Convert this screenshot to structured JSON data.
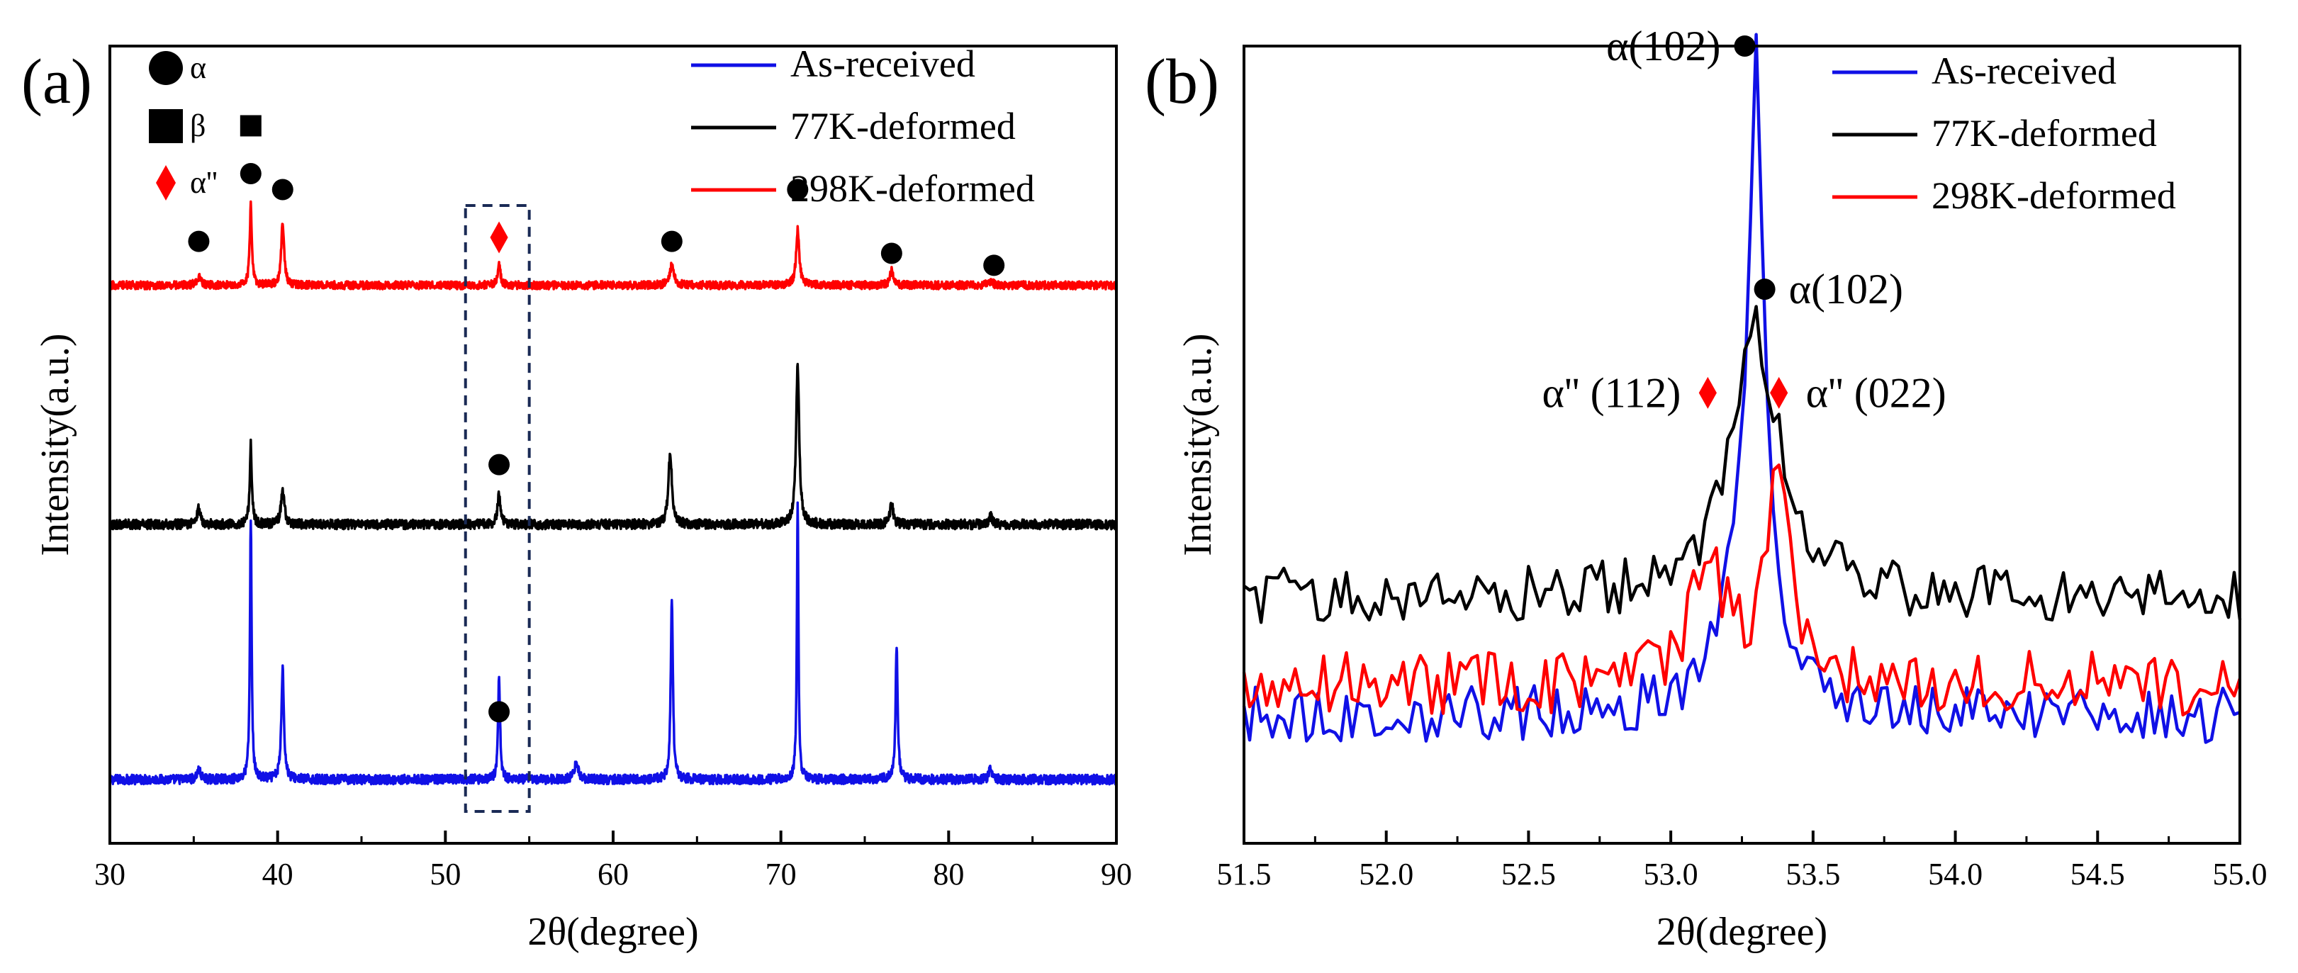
{
  "chart_data": [
    {
      "panel_label": "(a)",
      "type": "line",
      "xlabel": "2θ(degree)",
      "ylabel": "Intensity(a.u.)",
      "xlim": [
        30,
        90
      ],
      "xticks": [
        "30",
        "40",
        "50",
        "60",
        "70",
        "80",
        "90"
      ],
      "phase_legend": [
        {
          "symbol": "circle",
          "label": "α"
        },
        {
          "symbol": "square",
          "label": "β"
        },
        {
          "symbol": "diamond",
          "label": "α''"
        }
      ],
      "series": [
        {
          "name": "As-received",
          "color": "#1010e6",
          "baseline": 0.08,
          "noise": 0.006,
          "peaks": [
            [
              35.3,
              0.012,
              0.25
            ],
            [
              38.4,
              0.33,
              0.12
            ],
            [
              40.3,
              0.14,
              0.18
            ],
            [
              53.2,
              0.13,
              0.14
            ],
            [
              57.8,
              0.02,
              0.3
            ],
            [
              63.5,
              0.23,
              0.15
            ],
            [
              71.0,
              0.35,
              0.11
            ],
            [
              76.9,
              0.17,
              0.15
            ],
            [
              82.5,
              0.015,
              0.2
            ]
          ]
        },
        {
          "name": "77K-deformed",
          "color": "#000000",
          "baseline": 0.4,
          "noise": 0.006,
          "peaks": [
            [
              35.3,
              0.02,
              0.25
            ],
            [
              38.4,
              0.1,
              0.15
            ],
            [
              40.3,
              0.04,
              0.25
            ],
            [
              53.2,
              0.04,
              0.2
            ],
            [
              63.4,
              0.09,
              0.25
            ],
            [
              71.0,
              0.2,
              0.22
            ],
            [
              76.6,
              0.025,
              0.25
            ],
            [
              82.5,
              0.01,
              0.2
            ]
          ]
        },
        {
          "name": "298K-deformed",
          "color": "#ff0000",
          "baseline": 0.7,
          "noise": 0.005,
          "peaks": [
            [
              35.3,
              0.01,
              0.3
            ],
            [
              38.4,
              0.1,
              0.15
            ],
            [
              40.3,
              0.08,
              0.2
            ],
            [
              53.2,
              0.025,
              0.2
            ],
            [
              63.5,
              0.025,
              0.3
            ],
            [
              71.0,
              0.07,
              0.22
            ],
            [
              76.6,
              0.018,
              0.25
            ],
            [
              82.5,
              0.005,
              0.3
            ]
          ]
        }
      ],
      "annotations": [
        {
          "symbol": "circle",
          "x": 35.3,
          "y": 0.755,
          "color": "#000000"
        },
        {
          "symbol": "circle",
          "x": 38.4,
          "y": 0.84,
          "color": "#000000"
        },
        {
          "symbol": "square",
          "x": 38.4,
          "y": 0.9,
          "color": "#000000"
        },
        {
          "symbol": "circle",
          "x": 40.3,
          "y": 0.82,
          "color": "#000000"
        },
        {
          "symbol": "diamond",
          "x": 53.2,
          "y": 0.76,
          "color": "#ff0000"
        },
        {
          "symbol": "circle",
          "x": 63.5,
          "y": 0.755,
          "color": "#000000"
        },
        {
          "symbol": "circle",
          "x": 71.0,
          "y": 0.82,
          "color": "#000000"
        },
        {
          "symbol": "circle",
          "x": 76.6,
          "y": 0.74,
          "color": "#000000"
        },
        {
          "symbol": "circle",
          "x": 82.7,
          "y": 0.725,
          "color": "#000000"
        },
        {
          "symbol": "circle",
          "x": 53.2,
          "y": 0.475,
          "color": "#000000"
        },
        {
          "symbol": "circle",
          "x": 53.2,
          "y": 0.165,
          "color": "#000000"
        }
      ],
      "highlight_box": {
        "x_range": [
          51.2,
          55.0
        ],
        "y_range": [
          0.04,
          0.8
        ]
      }
    },
    {
      "panel_label": "(b)",
      "type": "line",
      "xlabel": "2θ(degree)",
      "ylabel": "Intensity(a.u.)",
      "xlim": [
        51.5,
        55.0
      ],
      "xticks": [
        "51.5",
        "52.0",
        "52.5",
        "53.0",
        "53.5",
        "54.0",
        "54.5",
        "55.0"
      ],
      "series": [
        {
          "name": "As-received",
          "color": "#1010e6",
          "baseline": 0.16,
          "noise": 0.035,
          "peaks": [
            [
              53.3,
              0.68,
              0.055
            ],
            [
              53.28,
              0.2,
              0.22
            ]
          ]
        },
        {
          "name": "77K-deformed",
          "color": "#000000",
          "baseline": 0.31,
          "noise": 0.035,
          "peaks": [
            [
              53.3,
              0.33,
              0.2
            ]
          ]
        },
        {
          "name": "298K-deformed",
          "color": "#ff0000",
          "baseline": 0.2,
          "noise": 0.04,
          "peaks": [
            [
              53.13,
              0.18,
              0.12
            ],
            [
              53.38,
              0.28,
              0.1
            ]
          ]
        }
      ],
      "annotations": [
        {
          "symbol": "circle",
          "x": 53.26,
          "y": 1.0,
          "color": "#000000",
          "label": "α(102)",
          "label_side": "left"
        },
        {
          "symbol": "circle",
          "x": 53.33,
          "y": 0.695,
          "color": "#000000",
          "label": "α(102)",
          "label_side": "right"
        },
        {
          "symbol": "diamond",
          "x": 53.13,
          "y": 0.565,
          "color": "#ff0000",
          "label": "α'' (112)",
          "label_side": "left"
        },
        {
          "symbol": "diamond",
          "x": 53.38,
          "y": 0.565,
          "color": "#ff0000",
          "label": "α'' (022)",
          "label_side": "right"
        }
      ]
    }
  ]
}
